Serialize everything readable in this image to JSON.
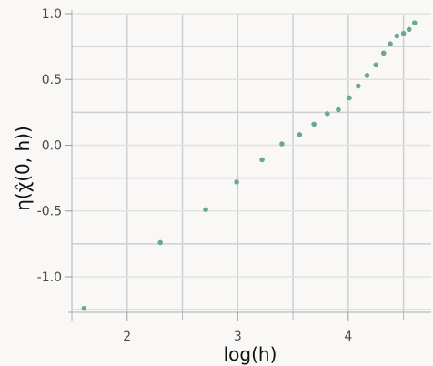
{
  "chart_data": {
    "type": "scatter",
    "xlabel": "log(h)",
    "ylabel": "η(χ̂(0, h))",
    "xlim": [
      1.5,
      4.75
    ],
    "ylim": [
      -1.27,
      1.0
    ],
    "x_ticks": [
      2,
      3,
      4
    ],
    "x_tick_labels": [
      "2",
      "3",
      "4"
    ],
    "y_ticks": [
      -1.0,
      -0.5,
      0.0,
      0.5,
      1.0
    ],
    "y_tick_labels": [
      "-1.0",
      "-0.5",
      "0.0",
      "0.5",
      "1.0"
    ],
    "grid": true,
    "colors": {
      "point": "#6aa892",
      "grid_major": "#cfcfcf",
      "grid_minor": "#e2e2e0",
      "background": "#f9f8f6"
    },
    "series": [
      {
        "x": [
          1.61,
          2.3,
          2.71,
          2.99,
          3.22,
          3.4,
          3.56,
          3.69,
          3.81,
          3.91,
          4.01,
          4.09,
          4.17,
          4.25,
          4.32,
          4.38,
          4.44,
          4.5,
          4.55,
          4.6
        ],
        "y": [
          -1.24,
          -0.74,
          -0.49,
          -0.28,
          -0.11,
          0.01,
          0.08,
          0.16,
          0.24,
          0.27,
          0.36,
          0.45,
          0.53,
          0.61,
          0.7,
          0.77,
          0.83,
          0.85,
          0.88,
          0.93
        ]
      }
    ]
  }
}
